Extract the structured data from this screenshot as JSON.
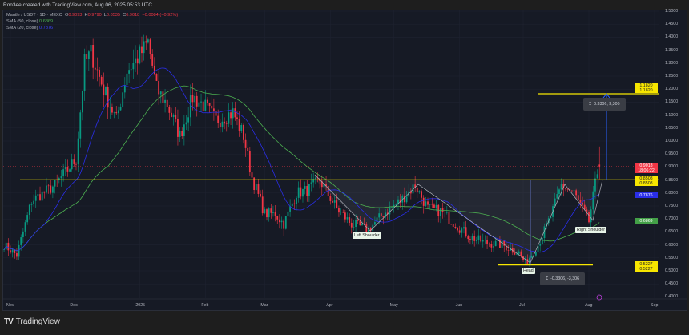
{
  "credit": "Ron3ee created with TradingView.com, Aug 06, 2025 05:53 UTC",
  "legend": {
    "symbol": "Mantle / USDT · 1D · MEXC",
    "o_label": "O",
    "o": "0.9093",
    "h_label": "H",
    "h": "0.9790",
    "l_label": "L",
    "l": "0.8535",
    "c_label": "C",
    "c": "0.9018",
    "change": "−0.0084 (−0.92%)",
    "sma50_label": "SMA (50, close)",
    "sma50": "0.6869",
    "sma20_label": "SMA (20, close)",
    "sma20": "0.7876"
  },
  "brand": {
    "logo": "TV",
    "name": "TradingView"
  },
  "colors": {
    "bg": "#161a25",
    "up": "#089981",
    "down": "#f23645",
    "sma50": "#4caf50",
    "sma20": "#2a2ee8",
    "level": "#f7e600",
    "arrow": "#2962ff"
  },
  "price_labels": {
    "target": "1.1820",
    "current": "0.9018",
    "countdown": "18:06:22",
    "neckline": "0.8508",
    "sma20": "0.7876",
    "sma50": "0.6869",
    "head_low": "0.5227"
  },
  "annotations": {
    "left_shoulder": "Left Shoulder",
    "head": "Head",
    "right_shoulder": "Right Shoulder",
    "measure_up": "0.3306, 3,306",
    "measure_down": "-0.3306, -3,306"
  },
  "chart_data": {
    "type": "candlestick",
    "title": "Mantle / USDT · 1D · MEXC",
    "y_ticks": [
      "1.5000",
      "1.4500",
      "1.4000",
      "1.3500",
      "1.3000",
      "1.2500",
      "1.2000",
      "1.1500",
      "1.1000",
      "1.0500",
      "1.0000",
      "0.9500",
      "0.9000",
      "0.8500",
      "0.8000",
      "0.7500",
      "0.7000",
      "0.6500",
      "0.6000",
      "0.5500",
      "0.5000",
      "0.4500",
      "0.4000"
    ],
    "ylim": [
      0.39,
      1.52
    ],
    "x_ticks": [
      "Nov",
      "Dec",
      "2025",
      "Feb",
      "Mar",
      "Apr",
      "May",
      "Jun",
      "Jul",
      "Aug",
      "Sep"
    ],
    "x_tick_dates": [
      "2024-11-01",
      "2024-12-01",
      "2025-01-01",
      "2025-02-01",
      "2025-03-01",
      "2025-04-01",
      "2025-05-01",
      "2025-06-01",
      "2025-07-01",
      "2025-08-01",
      "2025-09-01"
    ],
    "grid": true,
    "approx_closes": [
      [
        "2024-10-29",
        0.6
      ],
      [
        "2024-11-04",
        0.56
      ],
      [
        "2024-11-11",
        0.77
      ],
      [
        "2024-11-22",
        0.83
      ],
      [
        "2024-12-02",
        0.93
      ],
      [
        "2024-12-06",
        1.3
      ],
      [
        "2024-12-09",
        1.34
      ],
      [
        "2024-12-15",
        1.2
      ],
      [
        "2024-12-21",
        1.08
      ],
      [
        "2024-12-26",
        1.27
      ],
      [
        "2025-01-01",
        1.33
      ],
      [
        "2025-01-05",
        1.38
      ],
      [
        "2025-01-09",
        1.2
      ],
      [
        "2025-01-14",
        1.14
      ],
      [
        "2025-01-20",
        1.02
      ],
      [
        "2025-01-26",
        1.17
      ],
      [
        "2025-01-31",
        1.14
      ],
      [
        "2025-02-06",
        1.08
      ],
      [
        "2025-02-14",
        1.11
      ],
      [
        "2025-02-19",
        1.02
      ],
      [
        "2025-02-23",
        0.86
      ],
      [
        "2025-03-01",
        0.72
      ],
      [
        "2025-03-06",
        0.72
      ],
      [
        "2025-03-10",
        0.68
      ],
      [
        "2025-03-16",
        0.8
      ],
      [
        "2025-03-21",
        0.81
      ],
      [
        "2025-03-27",
        0.85
      ],
      [
        "2025-04-04",
        0.74
      ],
      [
        "2025-04-11",
        0.68
      ],
      [
        "2025-04-19",
        0.66
      ],
      [
        "2025-04-26",
        0.72
      ],
      [
        "2025-05-04",
        0.77
      ],
      [
        "2025-05-11",
        0.83
      ],
      [
        "2025-05-17",
        0.74
      ],
      [
        "2025-05-23",
        0.73
      ],
      [
        "2025-05-30",
        0.68
      ],
      [
        "2025-06-06",
        0.63
      ],
      [
        "2025-06-13",
        0.61
      ],
      [
        "2025-06-21",
        0.6
      ],
      [
        "2025-06-29",
        0.57
      ],
      [
        "2025-07-02",
        0.53
      ],
      [
        "2025-07-08",
        0.6
      ],
      [
        "2025-07-14",
        0.71
      ],
      [
        "2025-07-19",
        0.83
      ],
      [
        "2025-07-25",
        0.8
      ],
      [
        "2025-08-01",
        0.69
      ],
      [
        "2025-08-05",
        0.88
      ],
      [
        "2025-08-06",
        0.9018
      ]
    ],
    "last_candle": {
      "open": 0.9093,
      "high": 0.979,
      "low": 0.8535,
      "close": 0.9018
    },
    "levels": {
      "neckline": 0.8508,
      "target": 1.182,
      "head_low": 0.5227,
      "current": 0.9018
    },
    "series": [
      {
        "name": "SMA (50, close)",
        "last": 0.6869
      },
      {
        "name": "SMA (20, close)",
        "last": 0.7876
      }
    ]
  }
}
